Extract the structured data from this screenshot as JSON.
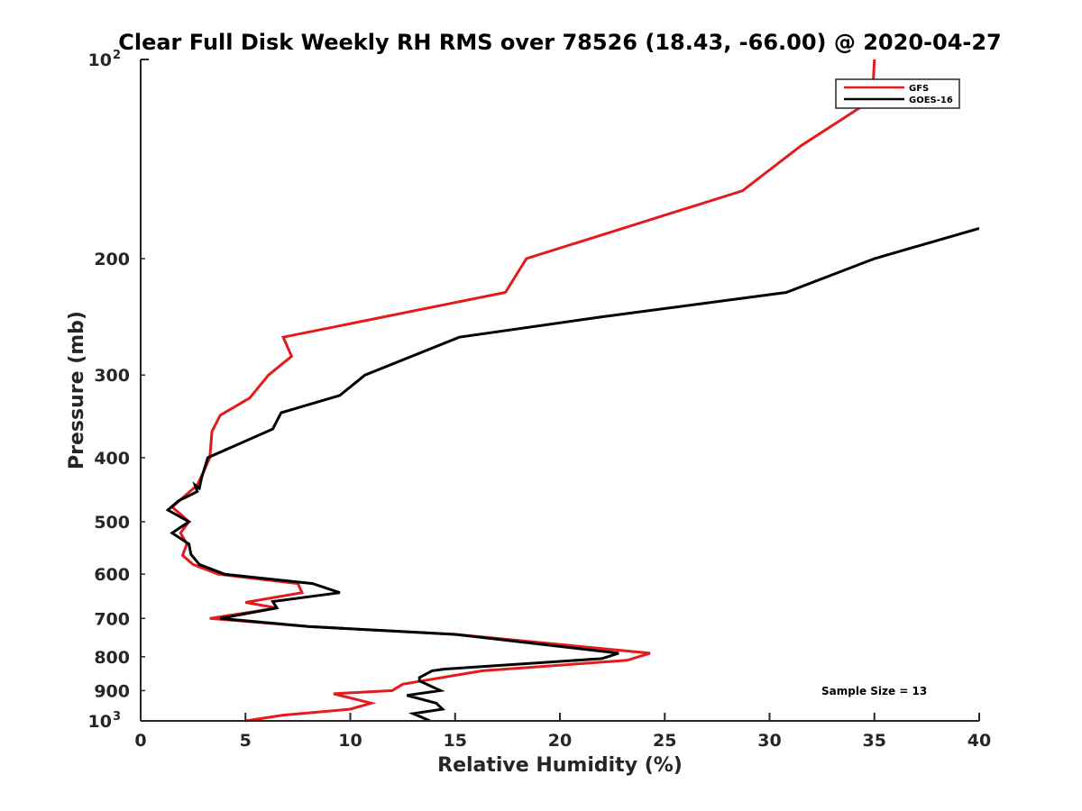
{
  "chart_data": {
    "type": "line",
    "title": "Clear Full Disk Weekly RH RMS over 78526 (18.43, -66.00) @ 2020-04-27",
    "xlabel": "Relative Humidity (%)",
    "ylabel": "Pressure (mb)",
    "xlim": [
      0,
      40
    ],
    "ylim": [
      100,
      1000
    ],
    "y_scale": "log",
    "y_reversed": true,
    "grid": false,
    "legend_position": "top-right",
    "x_ticks": [
      0,
      5,
      10,
      15,
      20,
      25,
      30,
      35,
      40
    ],
    "y_ticks": [
      {
        "value": 100,
        "base": "10",
        "exp": "2"
      },
      {
        "value": 200,
        "label": "200"
      },
      {
        "value": 300,
        "label": "300"
      },
      {
        "value": 400,
        "label": "400"
      },
      {
        "value": 500,
        "label": "500"
      },
      {
        "value": 600,
        "label": "600"
      },
      {
        "value": 700,
        "label": "700"
      },
      {
        "value": 800,
        "label": "800"
      },
      {
        "value": 900,
        "label": "900"
      },
      {
        "value": 1000,
        "base": "10",
        "exp": "3"
      }
    ],
    "annotation": "Sample Size = 13",
    "series": [
      {
        "name": "GFS",
        "color": "#e41a1c",
        "points": [
          [
            35.0,
            100
          ],
          [
            34.9,
            115
          ],
          [
            31.5,
            135
          ],
          [
            28.7,
            158
          ],
          [
            18.4,
            200
          ],
          [
            17.4,
            225
          ],
          [
            6.8,
            263
          ],
          [
            7.2,
            281
          ],
          [
            6.1,
            300
          ],
          [
            5.2,
            325
          ],
          [
            3.8,
            345
          ],
          [
            3.4,
            365
          ],
          [
            3.3,
            400
          ],
          [
            3.0,
            420
          ],
          [
            2.7,
            440
          ],
          [
            2.0,
            460
          ],
          [
            1.5,
            475
          ],
          [
            2.0,
            490
          ],
          [
            2.3,
            500
          ],
          [
            1.9,
            520
          ],
          [
            2.2,
            540
          ],
          [
            2.0,
            562
          ],
          [
            2.5,
            580
          ],
          [
            3.7,
            600
          ],
          [
            7.5,
            620
          ],
          [
            7.7,
            640
          ],
          [
            5.0,
            662
          ],
          [
            6.5,
            675
          ],
          [
            3.3,
            700
          ],
          [
            8.0,
            720
          ],
          [
            15.0,
            740
          ],
          [
            24.3,
            790
          ],
          [
            23.2,
            810
          ],
          [
            16.3,
            840
          ],
          [
            12.5,
            880
          ],
          [
            12.0,
            900
          ],
          [
            9.2,
            910
          ],
          [
            11.0,
            940
          ],
          [
            10.0,
            960
          ],
          [
            6.8,
            980
          ],
          [
            5.0,
            1000
          ]
        ]
      },
      {
        "name": "GOES-16",
        "color": "#000000",
        "points": [
          [
            40.0,
            180
          ],
          [
            35.0,
            200
          ],
          [
            30.8,
            225
          ],
          [
            22.0,
            245
          ],
          [
            15.2,
            263
          ],
          [
            10.7,
            300
          ],
          [
            9.5,
            322
          ],
          [
            6.7,
            342
          ],
          [
            6.3,
            362
          ],
          [
            3.2,
            400
          ],
          [
            2.9,
            430
          ],
          [
            2.8,
            445
          ],
          [
            2.6,
            440
          ],
          [
            2.7,
            450
          ],
          [
            1.8,
            465
          ],
          [
            1.3,
            480
          ],
          [
            2.3,
            500
          ],
          [
            1.5,
            520
          ],
          [
            2.3,
            540
          ],
          [
            2.4,
            560
          ],
          [
            2.8,
            580
          ],
          [
            4.0,
            600
          ],
          [
            8.2,
            620
          ],
          [
            9.5,
            640
          ],
          [
            6.3,
            660
          ],
          [
            6.5,
            675
          ],
          [
            3.8,
            700
          ],
          [
            8.0,
            720
          ],
          [
            15.0,
            740
          ],
          [
            22.8,
            790
          ],
          [
            22.0,
            805
          ],
          [
            14.5,
            835
          ],
          [
            13.9,
            840
          ],
          [
            13.3,
            860
          ],
          [
            13.3,
            870
          ],
          [
            14.3,
            900
          ],
          [
            12.7,
            915
          ],
          [
            14.1,
            940
          ],
          [
            14.4,
            960
          ],
          [
            13.0,
            975
          ],
          [
            13.8,
            1000
          ]
        ]
      }
    ]
  }
}
